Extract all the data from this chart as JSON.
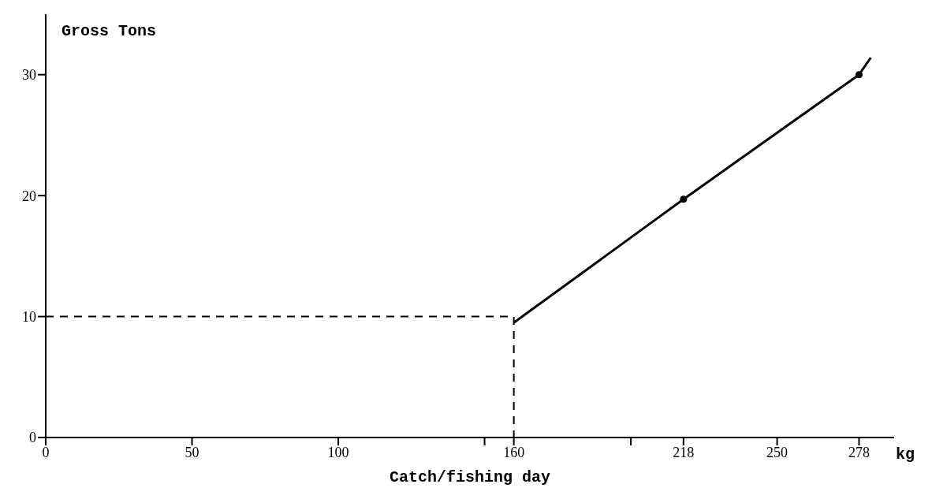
{
  "chart_data": {
    "type": "line",
    "xlabel": "Catch/fishing day",
    "ylabel": "Gross Tons",
    "annotations": [
      "kg"
    ],
    "xlim": [
      0,
      290
    ],
    "ylim": [
      0,
      35
    ],
    "xticks": [
      0,
      50,
      100,
      {
        "value": 150,
        "label": null
      },
      160,
      {
        "value": 200,
        "label": null
      },
      218,
      250,
      278
    ],
    "yticks": [
      0,
      10,
      20,
      30
    ],
    "grid": false,
    "series": [
      {
        "color": "#000000",
        "x": [
          160,
          218,
          278,
          282
        ],
        "values": [
          9.5,
          19.7,
          30,
          31.4
        ],
        "marker": "none",
        "line_style": "solid"
      },
      {
        "type": "scatter",
        "color": "#000000",
        "x": [
          218,
          278
        ],
        "values": [
          19.7,
          30
        ],
        "marker": "circle"
      },
      {
        "color": "#000000",
        "x": [
          0,
          160,
          160
        ],
        "values": [
          10,
          10,
          0
        ],
        "marker": "none",
        "line_style": "dashed"
      }
    ]
  }
}
